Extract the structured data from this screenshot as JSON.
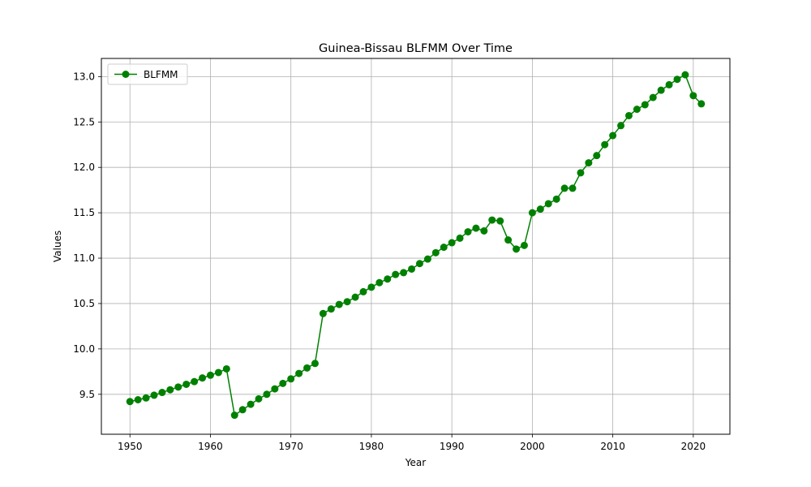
{
  "chart_data": {
    "type": "line",
    "title": "Guinea-Bissau BLFMM Over Time",
    "xlabel": "Year",
    "ylabel": "Values",
    "xlim": [
      1946.45,
      2024.55
    ],
    "ylim": [
      9.06,
      13.2
    ],
    "xticks": [
      1950,
      1960,
      1970,
      1980,
      1990,
      2000,
      2010,
      2020
    ],
    "yticks": [
      9.5,
      10.0,
      10.5,
      11.0,
      11.5,
      12.0,
      12.5,
      13.0
    ],
    "grid": true,
    "legend_position": "upper-left",
    "colors": {
      "series": "#008000",
      "grid": "#b0b0b0",
      "axes": "#000000"
    },
    "series": [
      {
        "name": "BLFMM",
        "marker": "circle",
        "x": [
          1950,
          1951,
          1952,
          1953,
          1954,
          1955,
          1956,
          1957,
          1958,
          1959,
          1960,
          1961,
          1962,
          1963,
          1964,
          1965,
          1966,
          1967,
          1968,
          1969,
          1970,
          1971,
          1972,
          1973,
          1974,
          1975,
          1976,
          1977,
          1978,
          1979,
          1980,
          1981,
          1982,
          1983,
          1984,
          1985,
          1986,
          1987,
          1988,
          1989,
          1990,
          1991,
          1992,
          1993,
          1994,
          1995,
          1996,
          1997,
          1998,
          1999,
          2000,
          2001,
          2002,
          2003,
          2004,
          2005,
          2006,
          2007,
          2008,
          2009,
          2010,
          2011,
          2012,
          2013,
          2014,
          2015,
          2016,
          2017,
          2018,
          2019,
          2020,
          2021
        ],
        "values": [
          9.42,
          9.44,
          9.46,
          9.49,
          9.52,
          9.55,
          9.58,
          9.61,
          9.64,
          9.68,
          9.71,
          9.74,
          9.78,
          9.27,
          9.33,
          9.39,
          9.45,
          9.5,
          9.56,
          9.62,
          9.67,
          9.73,
          9.79,
          9.84,
          10.39,
          10.44,
          10.49,
          10.52,
          10.57,
          10.63,
          10.68,
          10.73,
          10.77,
          10.82,
          10.84,
          10.88,
          10.94,
          10.99,
          11.06,
          11.12,
          11.17,
          11.22,
          11.29,
          11.33,
          11.3,
          11.42,
          11.41,
          11.2,
          11.1,
          11.14,
          11.5,
          11.54,
          11.6,
          11.65,
          11.77,
          11.77,
          11.94,
          12.05,
          12.13,
          12.25,
          12.35,
          12.46,
          12.57,
          12.64,
          12.69,
          12.77,
          12.85,
          12.91,
          12.97,
          13.02,
          12.79,
          12.7
        ]
      }
    ]
  }
}
